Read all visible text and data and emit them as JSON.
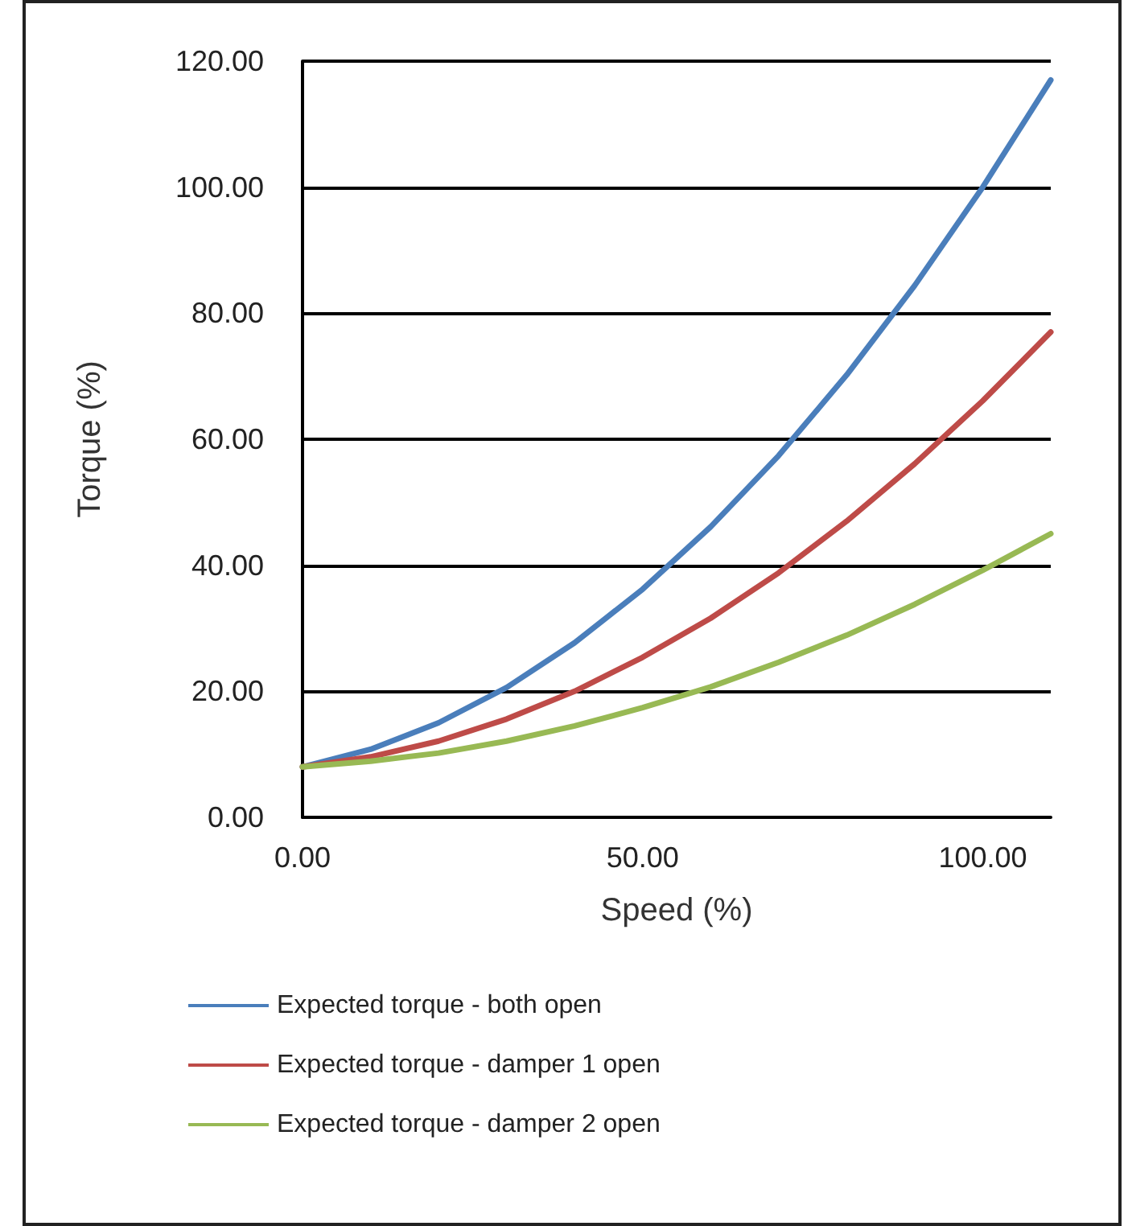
{
  "chart_data": {
    "type": "line",
    "xlabel": "Speed (%)",
    "ylabel": "Torque (%)",
    "x": [
      0,
      10,
      20,
      30,
      40,
      50,
      60,
      70,
      80,
      90,
      100,
      110
    ],
    "series": [
      {
        "name": "Expected torque - both open",
        "color": "#4a7ebb",
        "values": [
          8,
          10.8,
          15.0,
          20.6,
          27.7,
          36.2,
          46.1,
          57.4,
          70.2,
          84.4,
          100.0,
          117.0
        ]
      },
      {
        "name": "Expected torque - damper 1 open",
        "color": "#be4b48",
        "values": [
          8,
          9.6,
          12.1,
          15.6,
          20.0,
          25.4,
          31.6,
          38.8,
          47.0,
          56.1,
          66.1,
          77.0
        ]
      },
      {
        "name": "Expected torque - damper 2 open",
        "color": "#98b954",
        "values": [
          8,
          8.9,
          10.2,
          12.1,
          14.5,
          17.4,
          20.7,
          24.6,
          28.9,
          33.8,
          39.2,
          45.0
        ]
      }
    ],
    "xlim": [
      0,
      110
    ],
    "xticks": [
      {
        "value": 0,
        "label": "0.00"
      },
      {
        "value": 50,
        "label": "50.00"
      },
      {
        "value": 100,
        "label": "100.00"
      }
    ],
    "ylim": [
      0,
      120
    ],
    "yticks": [
      {
        "value": 0,
        "label": "0.00"
      },
      {
        "value": 20,
        "label": "20.00"
      },
      {
        "value": 40,
        "label": "40.00"
      },
      {
        "value": 60,
        "label": "60.00"
      },
      {
        "value": 80,
        "label": "80.00"
      },
      {
        "value": 100,
        "label": "100.00"
      },
      {
        "value": 120,
        "label": "120.00"
      }
    ],
    "grid": "y",
    "legend": "bottom",
    "marker": "none",
    "line_style": "solid"
  }
}
